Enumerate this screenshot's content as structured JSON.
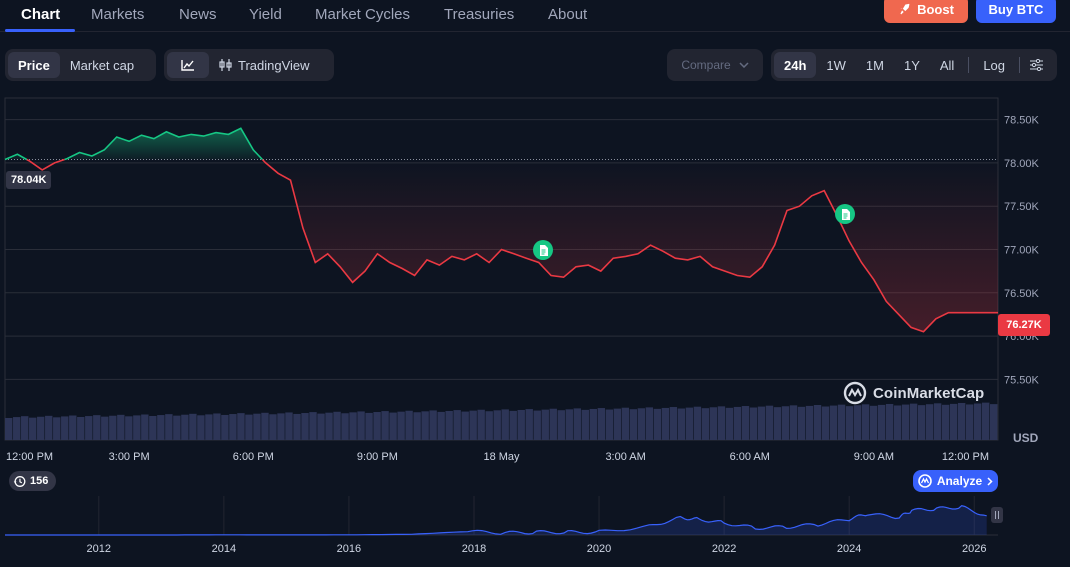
{
  "nav": {
    "tabs": [
      "Chart",
      "Markets",
      "News",
      "Yield",
      "Market Cycles",
      "Treasuries",
      "About"
    ],
    "active_tab": "Chart",
    "boost_label": "Boost",
    "buy_label": "Buy BTC"
  },
  "controls": {
    "metric_tabs": [
      "Price",
      "Market cap"
    ],
    "active_metric": "Price",
    "tradingview_label": "TradingView",
    "compare_label": "Compare",
    "ranges": [
      "24h",
      "1W",
      "1M",
      "1Y",
      "All"
    ],
    "active_range": "24h",
    "log_label": "Log"
  },
  "chart_data": {
    "type": "area",
    "y_unit": "USD",
    "yaxis_label": "USD",
    "ylim": [
      75.25,
      78.75
    ],
    "y_ticks": [
      "78.50K",
      "78.00K",
      "77.50K",
      "77.00K",
      "76.50K",
      "76.00K",
      "75.50K"
    ],
    "y_tick_values": [
      78.5,
      78.0,
      77.5,
      77.0,
      76.5,
      76.0,
      75.5
    ],
    "x_ticks": [
      "12:00 PM",
      "3:00 PM",
      "6:00 PM",
      "9:00 PM",
      "18 May",
      "3:00 AM",
      "6:00 AM",
      "9:00 AM",
      "12:00 PM"
    ],
    "x_tick_hours": [
      0,
      3,
      6,
      9,
      12,
      15,
      18,
      21,
      24
    ],
    "open_label": "78.04K",
    "open_value": 78.04,
    "last_label": "76.27K",
    "last_value": 76.27,
    "colors": {
      "up": "#16c784",
      "down": "#ea3943",
      "volume": "#2d3557"
    },
    "series": {
      "x_hours": [
        0.0,
        0.3,
        0.6,
        0.9,
        1.2,
        1.5,
        1.8,
        2.1,
        2.4,
        2.7,
        3.0,
        3.3,
        3.6,
        3.9,
        4.2,
        4.5,
        4.8,
        5.1,
        5.4,
        5.7,
        6.0,
        6.3,
        6.6,
        6.9,
        7.2,
        7.5,
        7.8,
        8.1,
        8.4,
        8.7,
        9.0,
        9.3,
        9.6,
        9.9,
        10.2,
        10.5,
        10.8,
        11.1,
        11.4,
        11.7,
        12.0,
        12.3,
        12.6,
        12.9,
        13.2,
        13.5,
        13.8,
        14.1,
        14.4,
        14.7,
        15.0,
        15.3,
        15.6,
        15.9,
        16.2,
        16.5,
        16.8,
        17.1,
        17.4,
        17.7,
        18.0,
        18.3,
        18.6,
        18.9,
        19.2,
        19.5,
        19.8,
        20.1,
        20.4,
        20.7,
        21.0,
        21.3,
        21.6,
        21.9,
        22.2,
        22.5,
        22.8,
        23.1,
        23.4,
        23.7,
        24.0
      ],
      "price_k": [
        78.04,
        78.1,
        78.02,
        77.92,
        78.0,
        78.05,
        78.12,
        78.08,
        78.15,
        78.3,
        78.25,
        78.32,
        78.28,
        78.36,
        78.3,
        78.33,
        78.31,
        78.35,
        78.33,
        78.4,
        78.15,
        78.0,
        77.88,
        77.8,
        77.25,
        76.85,
        76.95,
        76.8,
        76.62,
        76.75,
        76.95,
        76.85,
        76.78,
        76.7,
        76.88,
        76.82,
        76.92,
        76.88,
        76.95,
        76.85,
        77.0,
        76.95,
        76.9,
        76.85,
        76.7,
        76.68,
        76.8,
        76.82,
        76.75,
        76.9,
        76.92,
        76.95,
        77.05,
        76.98,
        76.9,
        76.88,
        76.92,
        76.8,
        76.75,
        76.7,
        76.68,
        76.8,
        77.05,
        77.45,
        77.5,
        77.62,
        77.68,
        77.4,
        77.1,
        76.85,
        76.65,
        76.4,
        76.25,
        76.1,
        76.05,
        76.2,
        76.27,
        76.27,
        76.27,
        76.27,
        76.27
      ]
    },
    "navigator": {
      "x_ticks": [
        "2012",
        "2014",
        "2016",
        "2018",
        "2020",
        "2022",
        "2024",
        "2026"
      ],
      "years": [
        2010.5,
        2012,
        2013,
        2014,
        2015,
        2016,
        2017,
        2017.9,
        2018.5,
        2019,
        2019.5,
        2020,
        2020.8,
        2021.3,
        2021.6,
        2022,
        2022.5,
        2023,
        2023.5,
        2024,
        2024.3,
        2024.8,
        2025,
        2025.4,
        2025.8,
        2026.2
      ],
      "relative_level": [
        0.0,
        0.0,
        0.0,
        0.005,
        0.003,
        0.005,
        0.02,
        0.1,
        0.06,
        0.08,
        0.08,
        0.09,
        0.25,
        0.5,
        0.45,
        0.35,
        0.2,
        0.23,
        0.3,
        0.45,
        0.6,
        0.5,
        0.7,
        0.75,
        0.8,
        0.55
      ]
    }
  },
  "overlay": {
    "watermark": "CoinMarketCap",
    "history_count": "156",
    "analyze_label": "Analyze"
  }
}
